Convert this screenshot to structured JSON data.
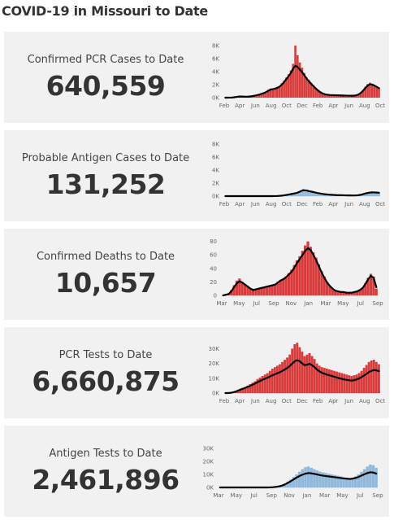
{
  "title": "COVID-19 in Missouri to Date",
  "colors": {
    "red": "#d93a3a",
    "blue": "#8fb8da",
    "line": "#000000",
    "card_bg": "#f1f1f1"
  },
  "cards": [
    {
      "label": "Confirmed PCR Cases to Date",
      "value": "640,559"
    },
    {
      "label": "Probable Antigen Cases to Date",
      "value": "131,252"
    },
    {
      "label": "Confirmed Deaths to Date",
      "value": "10,657"
    },
    {
      "label": "PCR Tests to Date",
      "value": "6,660,875"
    },
    {
      "label": "Antigen Tests to Date",
      "value": "2,461,896"
    }
  ],
  "chart_data": [
    {
      "type": "bar",
      "color": "red",
      "xticks": [
        "Feb",
        "Apr",
        "Jun",
        "Aug",
        "Oct",
        "Dec",
        "Feb",
        "Apr",
        "Jun",
        "Aug",
        "Oct"
      ],
      "yticks": [
        0,
        2000,
        4000,
        6000,
        8000
      ],
      "ytick_labels": [
        "0K",
        "2K",
        "4K",
        "6K",
        "8K"
      ],
      "ylim": [
        0,
        8500
      ],
      "x_span_months": [
        2020.08,
        2021.83
      ],
      "values": [
        0,
        0,
        10,
        30,
        80,
        150,
        200,
        180,
        160,
        150,
        160,
        200,
        260,
        320,
        420,
        520,
        650,
        780,
        950,
        1200,
        1400,
        1300,
        1450,
        1600,
        1800,
        2200,
        2600,
        3100,
        3600,
        4200,
        5200,
        8000,
        6500,
        5400,
        4600,
        3800,
        3100,
        2700,
        2300,
        1900,
        1500,
        1200,
        900,
        700,
        550,
        480,
        420,
        390,
        380,
        370,
        360,
        350,
        330,
        320,
        310,
        300,
        300,
        320,
        380,
        520,
        800,
        1200,
        1700,
        2100,
        2300,
        2100,
        1900,
        1700,
        1500
      ],
      "trend": [
        0,
        0,
        5,
        20,
        60,
        120,
        170,
        170,
        160,
        150,
        155,
        190,
        240,
        300,
        380,
        470,
        580,
        700,
        850,
        1050,
        1250,
        1300,
        1380,
        1520,
        1700,
        2000,
        2400,
        2850,
        3300,
        3800,
        4500,
        4900,
        4700,
        4300,
        3900,
        3400,
        2900,
        2500,
        2100,
        1750,
        1400,
        1100,
        850,
        650,
        520,
        460,
        410,
        385,
        375,
        365,
        355,
        345,
        330,
        318,
        308,
        300,
        300,
        315,
        370,
        500,
        750,
        1100,
        1500,
        1850,
        2050,
        2000,
        1850,
        1650,
        1450
      ]
    },
    {
      "type": "bar",
      "color": "blue",
      "xticks": [
        "Feb",
        "Apr",
        "Jun",
        "Aug",
        "Oct",
        "Dec",
        "Feb",
        "Apr",
        "Jun",
        "Aug",
        "Oct"
      ],
      "yticks": [
        0,
        2000,
        4000,
        6000,
        8000
      ],
      "ytick_labels": [
        "0K",
        "2K",
        "4K",
        "6K",
        "8K"
      ],
      "ylim": [
        0,
        8500
      ],
      "values": [
        0,
        0,
        0,
        0,
        0,
        0,
        0,
        0,
        0,
        0,
        0,
        0,
        0,
        0,
        0,
        0,
        0,
        0,
        0,
        0,
        0,
        10,
        30,
        60,
        100,
        150,
        220,
        300,
        380,
        450,
        520,
        680,
        900,
        1100,
        1000,
        900,
        800,
        700,
        600,
        500,
        420,
        350,
        300,
        260,
        220,
        200,
        180,
        160,
        150,
        140,
        130,
        120,
        110,
        100,
        100,
        110,
        140,
        200,
        300,
        420,
        520,
        600,
        650,
        620,
        580,
        540
      ],
      "trend": [
        0,
        0,
        0,
        0,
        0,
        0,
        0,
        0,
        0,
        0,
        0,
        0,
        0,
        0,
        0,
        0,
        0,
        0,
        0,
        0,
        0,
        5,
        20,
        45,
        80,
        130,
        190,
        260,
        330,
        400,
        470,
        600,
        780,
        900,
        880,
        800,
        720,
        640,
        560,
        480,
        410,
        350,
        300,
        260,
        225,
        200,
        180,
        160,
        150,
        140,
        130,
        120,
        112,
        105,
        102,
        110,
        135,
        185,
        270,
        380,
        470,
        540,
        580,
        570,
        545,
        520
      ]
    },
    {
      "type": "bar",
      "color": "red",
      "xticks": [
        "Mar",
        "May",
        "Jul",
        "Sep",
        "Nov",
        "Jan",
        "Mar",
        "May",
        "Jul",
        "Sep"
      ],
      "yticks": [
        0,
        20,
        40,
        60,
        80
      ],
      "ytick_labels": [
        "0",
        "20",
        "40",
        "60",
        "80"
      ],
      "ylim": [
        0,
        82
      ],
      "values": [
        0,
        1,
        3,
        8,
        15,
        22,
        25,
        20,
        17,
        14,
        10,
        8,
        9,
        10,
        12,
        12,
        13,
        14,
        15,
        17,
        20,
        23,
        25,
        28,
        33,
        38,
        45,
        52,
        58,
        66,
        74,
        80,
        72,
        64,
        56,
        46,
        36,
        28,
        20,
        14,
        10,
        7,
        6,
        5,
        5,
        4,
        4,
        4,
        5,
        6,
        8,
        12,
        18,
        26,
        32,
        28,
        10
      ],
      "trend": [
        0,
        1,
        2,
        6,
        12,
        18,
        21,
        19,
        16,
        13,
        10,
        8,
        9,
        10,
        11,
        12,
        13,
        14,
        15,
        16,
        19,
        22,
        24,
        27,
        31,
        35,
        41,
        48,
        54,
        60,
        66,
        70,
        67,
        60,
        52,
        43,
        34,
        26,
        19,
        14,
        10,
        7,
        6,
        5,
        5,
        4,
        4,
        4,
        5,
        6,
        8,
        11,
        17,
        24,
        29,
        26,
        12
      ]
    },
    {
      "type": "bar",
      "color": "red",
      "xticks": [
        "Feb",
        "Apr",
        "Jun",
        "Aug",
        "Oct",
        "Dec",
        "Feb",
        "Apr",
        "Jun",
        "Aug",
        "Oct"
      ],
      "yticks": [
        0,
        10000,
        20000,
        30000
      ],
      "ytick_labels": [
        "0K",
        "10K",
        "20K",
        "30K"
      ],
      "ylim": [
        0,
        33000
      ],
      "values": [
        0,
        0,
        200,
        600,
        1200,
        2000,
        2800,
        3500,
        4200,
        5000,
        6000,
        7000,
        8000,
        9500,
        10500,
        11500,
        12500,
        13500,
        15000,
        16500,
        17500,
        18500,
        19500,
        21000,
        22500,
        24000,
        26000,
        30000,
        33000,
        34000,
        31000,
        28000,
        25000,
        26000,
        27000,
        25000,
        23000,
        20000,
        18500,
        17500,
        17000,
        16500,
        16000,
        15500,
        15000,
        14500,
        14000,
        13500,
        13000,
        12500,
        12000,
        11500,
        12000,
        12500,
        13500,
        15000,
        17000,
        19000,
        21000,
        22000,
        22500,
        21000,
        19500
      ],
      "trend": [
        0,
        0,
        150,
        450,
        900,
        1600,
        2300,
        2900,
        3500,
        4200,
        4900,
        5700,
        6500,
        7400,
        8200,
        9000,
        9700,
        10400,
        11200,
        12000,
        12700,
        13400,
        14100,
        15000,
        16000,
        17000,
        18300,
        20000,
        21500,
        22200,
        21500,
        20000,
        18800,
        19200,
        19800,
        18800,
        17500,
        15800,
        14600,
        13700,
        13000,
        12500,
        12000,
        11500,
        11000,
        10500,
        10000,
        9600,
        9200,
        8900,
        8600,
        8400,
        8700,
        9200,
        9900,
        10800,
        11900,
        13000,
        14200,
        15000,
        15600,
        15300,
        14800
      ]
    },
    {
      "type": "bar",
      "color": "blue",
      "xticks": [
        "Mar",
        "May",
        "Jul",
        "Sep",
        "Nov",
        "Jan",
        "Mar",
        "May",
        "Jul",
        "Sep"
      ],
      "yticks": [
        0,
        10000,
        20000,
        30000
      ],
      "ytick_labels": [
        "0K",
        "10K",
        "20K",
        "30K"
      ],
      "ylim": [
        0,
        33000
      ],
      "values": [
        0,
        0,
        0,
        0,
        0,
        0,
        0,
        0,
        0,
        0,
        0,
        0,
        0,
        0,
        0,
        0,
        0,
        100,
        300,
        600,
        1000,
        1800,
        3000,
        4500,
        6000,
        8000,
        10000,
        12000,
        14000,
        15500,
        16000,
        15000,
        14000,
        13000,
        12000,
        11500,
        11000,
        10500,
        10000,
        9500,
        9000,
        8500,
        8000,
        7500,
        7000,
        7500,
        8500,
        10000,
        12000,
        14000,
        16000,
        17500,
        17000,
        15000
      ],
      "trend": [
        0,
        0,
        0,
        0,
        0,
        0,
        0,
        0,
        0,
        0,
        0,
        0,
        0,
        0,
        0,
        0,
        0,
        60,
        200,
        450,
        800,
        1400,
        2300,
        3500,
        4800,
        6200,
        7600,
        8800,
        9800,
        10600,
        11000,
        10800,
        10400,
        9900,
        9400,
        9000,
        8700,
        8400,
        8100,
        7800,
        7500,
        7200,
        6900,
        6700,
        6500,
        6700,
        7300,
        8100,
        9100,
        10100,
        11000,
        11600,
        11400,
        10600
      ]
    }
  ]
}
